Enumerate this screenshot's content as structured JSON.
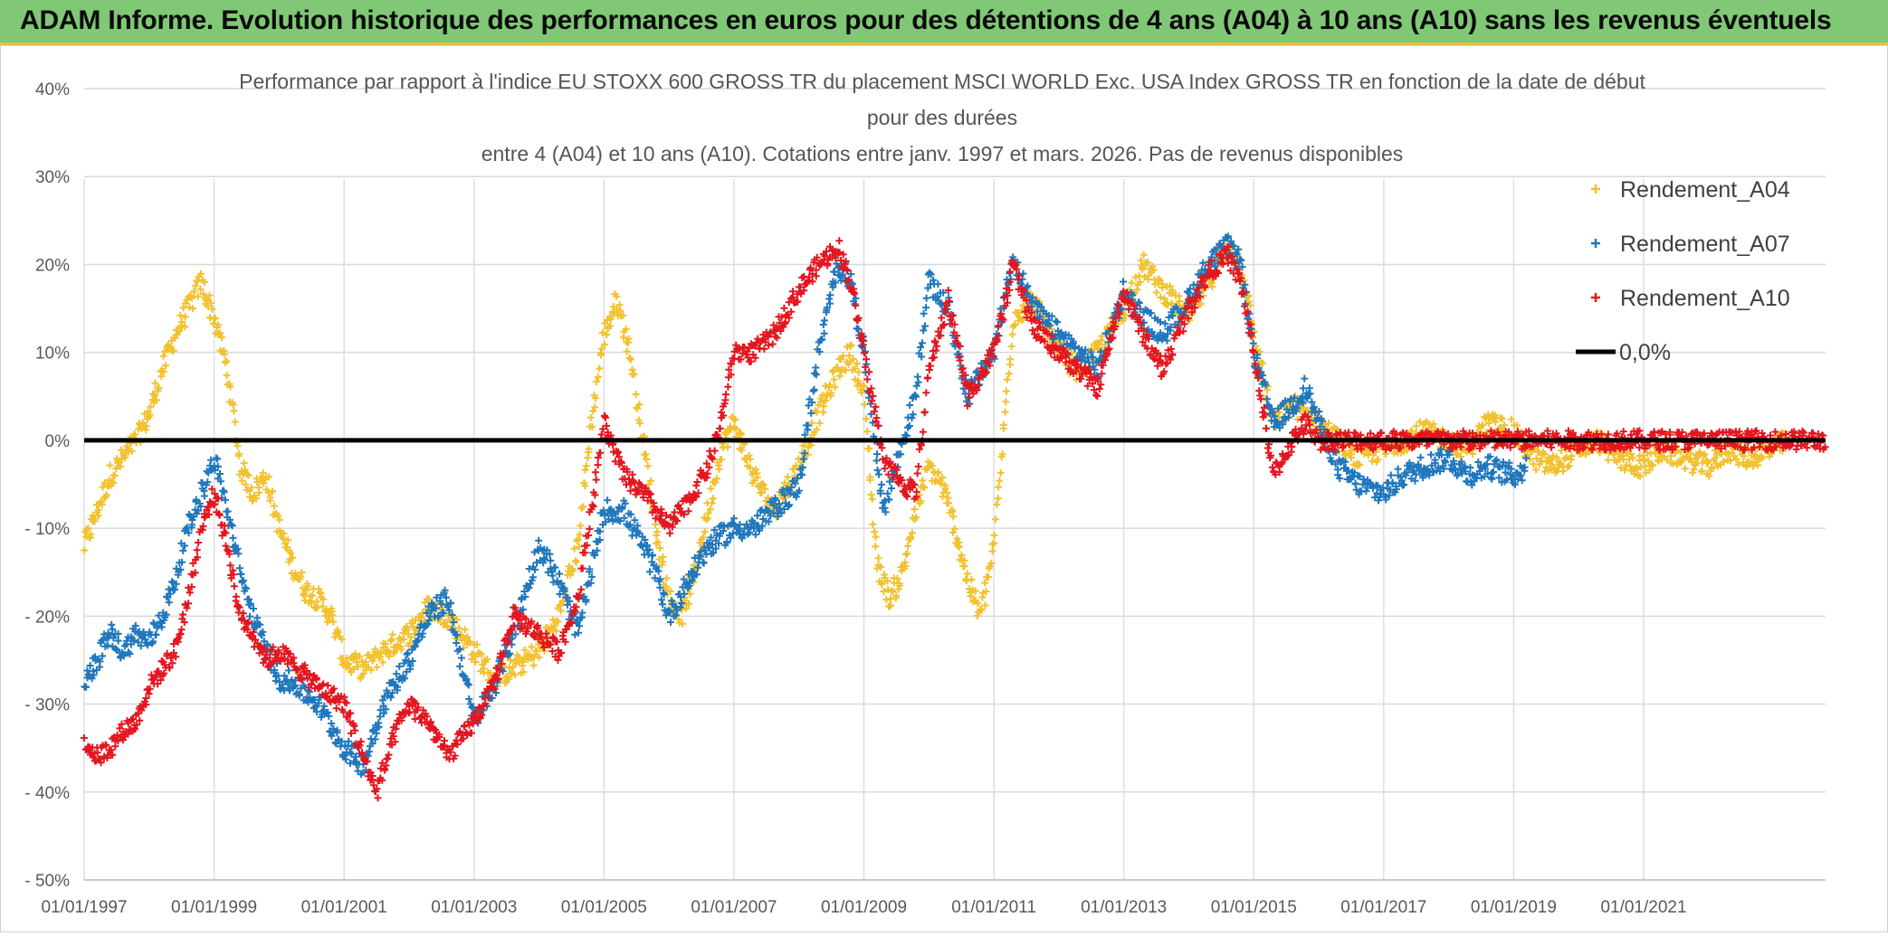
{
  "banner": {
    "title": "ADAM Informe. Evolution historique des performances en euros pour des détentions de 4 ans (A04) à 10 ans (A10) sans les revenus éventuels"
  },
  "colors": {
    "banner_bg": "#80c776",
    "A04": "#f2c12e",
    "A07": "#1f77bd",
    "A10": "#e3161f",
    "zero_line": "#000000"
  },
  "chart_data": {
    "type": "scatter",
    "title_lines": [
      "Performance par rapport à l'indice EU STOXX 600 GROSS TR  du placement MSCI WORLD Exc. USA Index GROSS TR en fonction de la date de début",
      "pour des durées",
      "entre 4 (A04) et 10 ans (A10). Cotations entre janv. 1997 et mars. 2026. Pas de revenus disponibles"
    ],
    "x_range": [
      1997.0,
      2023.8
    ],
    "ylim": [
      -50,
      40
    ],
    "y_ticks": [
      40,
      30,
      20,
      10,
      0,
      -10,
      -20,
      -30,
      -40,
      -50
    ],
    "y_tick_labels": [
      "40%",
      "30%",
      "20%",
      "10%",
      "0%",
      "- 10%",
      "- 20%",
      "- 30%",
      "- 40%",
      "- 50%"
    ],
    "x_ticks": [
      1997,
      1999,
      2001,
      2003,
      2005,
      2007,
      2009,
      2011,
      2013,
      2015,
      2017,
      2019,
      2021
    ],
    "x_tick_labels": [
      "01/01/1997",
      "01/01/1999",
      "01/01/2001",
      "01/01/2003",
      "01/01/2005",
      "01/01/2007",
      "01/01/2009",
      "01/01/2011",
      "01/01/2013",
      "01/01/2015",
      "01/01/2017",
      "01/01/2019",
      "01/01/2021"
    ],
    "legend": [
      {
        "name": "Rendement_A04",
        "kind": "marker"
      },
      {
        "name": "Rendement_A07",
        "kind": "marker"
      },
      {
        "name": "Rendement_A10",
        "kind": "marker"
      },
      {
        "name": "0,0%",
        "kind": "line"
      }
    ],
    "legend_position": "right",
    "series": [
      {
        "name": "Rendement_A04",
        "color_key": "A04",
        "x": [
          1997.0,
          1997.2,
          1997.4,
          1997.6,
          1997.8,
          1998.0,
          1998.2,
          1998.4,
          1998.6,
          1998.8,
          1999.0,
          1999.2,
          1999.4,
          1999.6,
          1999.8,
          2000.0,
          2000.2,
          2000.4,
          2000.6,
          2000.8,
          2001.0,
          2001.3,
          2001.6,
          2002.0,
          2002.3,
          2002.6,
          2003.0,
          2003.3,
          2003.6,
          2004.0,
          2004.3,
          2004.6,
          2004.8,
          2005.0,
          2005.2,
          2005.4,
          2005.6,
          2005.8,
          2006.0,
          2006.2,
          2006.4,
          2006.6,
          2006.8,
          2007.0,
          2007.3,
          2007.6,
          2008.0,
          2008.3,
          2008.6,
          2008.8,
          2009.0,
          2009.2,
          2009.4,
          2009.6,
          2009.8,
          2010.0,
          2010.2,
          2010.4,
          2010.6,
          2010.8,
          2011.0,
          2011.3,
          2011.6,
          2012.0,
          2012.3,
          2012.6,
          2013.0,
          2013.3,
          2013.6,
          2014.0,
          2014.3,
          2014.6,
          2014.8,
          2015.0,
          2015.3,
          2015.6,
          2016.0,
          2016.3,
          2016.6,
          2017.0,
          2017.3,
          2017.6,
          2018.0,
          2018.3,
          2018.6,
          2019.0,
          2019.3,
          2019.6,
          2020.0,
          2020.3,
          2020.6,
          2021.0,
          2021.3,
          2021.6,
          2022.0,
          2022.3,
          2022.6,
          2023.0,
          2023.2
        ],
        "y": [
          -12,
          -8,
          -4,
          -2,
          0,
          3,
          8,
          12,
          15,
          18,
          14,
          8,
          -3,
          -6,
          -4,
          -10,
          -14,
          -17,
          -18,
          -20,
          -25,
          -26,
          -24,
          -22,
          -19,
          -20,
          -24,
          -27,
          -26,
          -24,
          -20,
          -12,
          2,
          12,
          16,
          10,
          0,
          -10,
          -18,
          -20,
          -15,
          -8,
          -1,
          2,
          -4,
          -8,
          -3,
          3,
          8,
          10,
          5,
          -14,
          -18,
          -15,
          -8,
          -3,
          -5,
          -10,
          -16,
          -20,
          -12,
          14,
          16,
          10,
          8,
          10,
          15,
          20,
          17,
          14,
          18,
          22,
          20,
          12,
          2,
          4,
          2,
          0,
          -2,
          -1,
          0,
          1,
          0,
          -1,
          2,
          1,
          -2,
          -3,
          -1,
          0,
          -2,
          -3,
          -1,
          -2,
          -3,
          -1,
          -2,
          -1,
          0
        ],
        "spread": 1.3
      },
      {
        "name": "Rendement_A07",
        "color_key": "A07",
        "x": [
          1997.0,
          1997.2,
          1997.4,
          1997.6,
          1997.8,
          1998.0,
          1998.2,
          1998.4,
          1998.6,
          1998.8,
          1999.0,
          1999.2,
          1999.4,
          1999.6,
          1999.8,
          2000.0,
          2000.3,
          2000.6,
          2001.0,
          2001.3,
          2001.6,
          2002.0,
          2002.3,
          2002.6,
          2003.0,
          2003.3,
          2003.6,
          2004.0,
          2004.3,
          2004.6,
          2005.0,
          2005.3,
          2005.6,
          2005.8,
          2006.0,
          2006.3,
          2006.6,
          2007.0,
          2007.3,
          2007.6,
          2008.0,
          2008.3,
          2008.6,
          2008.8,
          2009.0,
          2009.3,
          2009.6,
          2009.8,
          2010.0,
          2010.3,
          2010.6,
          2011.0,
          2011.3,
          2011.6,
          2012.0,
          2012.3,
          2012.6,
          2013.0,
          2013.3,
          2013.6,
          2014.0,
          2014.3,
          2014.6,
          2014.8,
          2015.0,
          2015.3,
          2015.6,
          2015.8,
          2016.0,
          2016.3,
          2016.6,
          2017.0,
          2017.3,
          2017.6,
          2018.0,
          2018.3,
          2018.6,
          2019.0,
          2019.2
        ],
        "y": [
          -28,
          -25,
          -22,
          -24,
          -22,
          -23,
          -20,
          -16,
          -10,
          -6,
          -2,
          -8,
          -15,
          -20,
          -24,
          -27,
          -28,
          -30,
          -35,
          -37,
          -30,
          -25,
          -20,
          -18,
          -32,
          -28,
          -22,
          -12,
          -16,
          -22,
          -8,
          -8,
          -12,
          -15,
          -20,
          -16,
          -12,
          -10,
          -10,
          -8,
          -5,
          10,
          20,
          18,
          10,
          -8,
          0,
          5,
          18,
          15,
          5,
          10,
          21,
          15,
          12,
          10,
          8,
          17,
          14,
          12,
          16,
          20,
          22,
          20,
          10,
          2,
          4,
          6,
          2,
          -3,
          -5,
          -6,
          -4,
          -3,
          -2,
          -4,
          -3,
          -4,
          -3
        ],
        "spread": 1.3
      },
      {
        "name": "Rendement_A10",
        "color_key": "A10",
        "x": [
          1997.0,
          1997.2,
          1997.4,
          1997.6,
          1997.8,
          1998.0,
          1998.2,
          1998.4,
          1998.6,
          1998.8,
          1999.0,
          1999.2,
          1999.4,
          1999.6,
          1999.8,
          2000.0,
          2000.3,
          2000.6,
          2001.0,
          2001.3,
          2001.5,
          2001.8,
          2002.0,
          2002.3,
          2002.6,
          2003.0,
          2003.3,
          2003.6,
          2004.0,
          2004.3,
          2004.6,
          2005.0,
          2005.3,
          2005.6,
          2005.8,
          2006.0,
          2006.3,
          2006.6,
          2006.8,
          2007.0,
          2007.3,
          2007.6,
          2008.0,
          2008.3,
          2008.6,
          2008.8,
          2009.0,
          2009.3,
          2009.6,
          2009.8,
          2010.0,
          2010.3,
          2010.6,
          2011.0,
          2011.3,
          2011.6,
          2012.0,
          2012.3,
          2012.6,
          2013.0,
          2013.3,
          2013.6,
          2014.0,
          2014.3,
          2014.6,
          2014.8,
          2015.0,
          2015.3,
          2015.6,
          2015.8,
          2016.0,
          2016.5,
          2017.0,
          2017.5,
          2018.0,
          2018.5,
          2019.0,
          2019.5,
          2020.0,
          2020.5,
          2021.0,
          2021.5,
          2022.0,
          2022.5,
          2023.0,
          2023.5,
          2023.8
        ],
        "y": [
          -34,
          -36,
          -35,
          -33,
          -32,
          -28,
          -26,
          -24,
          -18,
          -10,
          -6,
          -12,
          -20,
          -22,
          -25,
          -24,
          -26,
          -28,
          -30,
          -36,
          -40,
          -33,
          -30,
          -32,
          -36,
          -32,
          -28,
          -20,
          -22,
          -24,
          -18,
          2,
          -4,
          -6,
          -8,
          -10,
          -7,
          -3,
          2,
          10,
          10,
          12,
          17,
          20,
          22,
          18,
          10,
          -2,
          -5,
          -6,
          8,
          16,
          5,
          10,
          20,
          13,
          10,
          8,
          6,
          17,
          12,
          8,
          15,
          19,
          21,
          18,
          10,
          -4,
          0,
          2,
          0,
          0,
          0,
          0,
          0,
          0,
          0,
          0,
          0,
          0,
          0,
          0,
          0,
          0,
          0,
          0,
          0
        ],
        "spread": 1.1
      }
    ],
    "zero_line": {
      "value": 0,
      "label": "0,0%"
    }
  }
}
